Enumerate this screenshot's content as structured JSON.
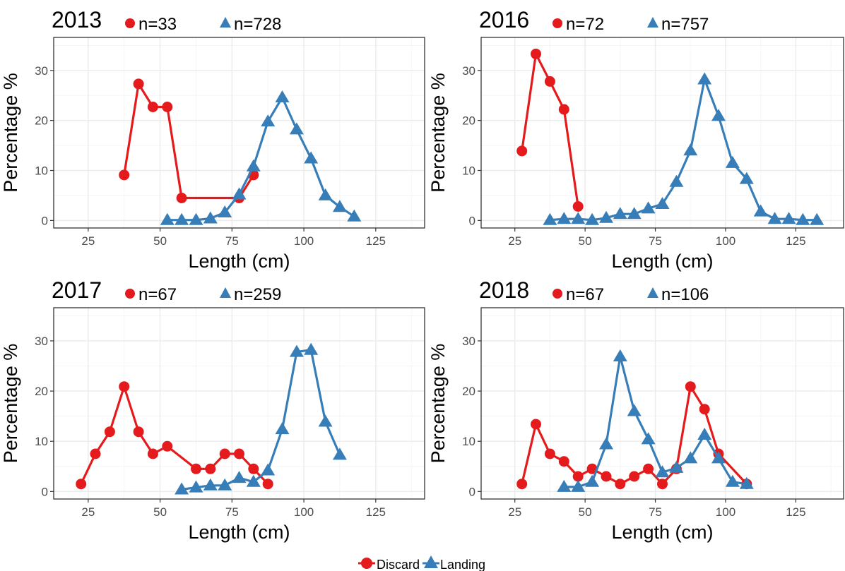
{
  "colors": {
    "discard": "#e41a1c",
    "landing": "#377eb8",
    "grid_major": "#ebebeb",
    "grid_minor": "#f5f5f5",
    "border": "#333333"
  },
  "legend": {
    "placement": "bottom",
    "items": [
      {
        "label": "Discard",
        "marker": "circle"
      },
      {
        "label": "Landing",
        "marker": "triangle"
      }
    ]
  },
  "chart_data": [
    {
      "type": "line",
      "title": "2013",
      "annotations": [
        "n=33",
        "n=728"
      ],
      "xlabel": "Length (cm)",
      "ylabel": "Percentage %",
      "xlim": [
        13,
        142
      ],
      "ylim": [
        -1.5,
        36.6
      ],
      "xticks": [
        25,
        50,
        75,
        100,
        125
      ],
      "yticks": [
        0,
        10,
        20,
        30
      ],
      "series": [
        {
          "name": "Discard",
          "x": [
            37.5,
            42.5,
            47.5,
            52.5,
            57.5,
            77.5,
            82.5
          ],
          "y": [
            9.1,
            27.3,
            22.7,
            22.7,
            4.5,
            4.5,
            9.1
          ]
        },
        {
          "name": "Landing",
          "x": [
            52.5,
            57.5,
            62.5,
            67.5,
            72.5,
            77.5,
            82.5,
            87.5,
            92.5,
            97.5,
            102.5,
            107.5,
            112.5,
            117.5
          ],
          "y": [
            0.1,
            0.1,
            0.1,
            0.4,
            1.6,
            5.2,
            10.8,
            19.8,
            24.6,
            18.2,
            12.4,
            5.0,
            2.7,
            0.8
          ]
        }
      ]
    },
    {
      "type": "line",
      "title": "2016",
      "annotations": [
        "n=72",
        "n=757"
      ],
      "xlabel": "Length (cm)",
      "ylabel": "Percentage %",
      "xlim": [
        13,
        142
      ],
      "ylim": [
        -1.5,
        36.6
      ],
      "xticks": [
        25,
        50,
        75,
        100,
        125
      ],
      "yticks": [
        0,
        10,
        20,
        30
      ],
      "series": [
        {
          "name": "Discard",
          "x": [
            27.5,
            32.5,
            37.5,
            42.5,
            47.5
          ],
          "y": [
            13.9,
            33.3,
            27.8,
            22.2,
            2.8
          ]
        },
        {
          "name": "Landing",
          "x": [
            37.5,
            42.5,
            47.5,
            52.5,
            57.5,
            62.5,
            67.5,
            72.5,
            77.5,
            82.5,
            87.5,
            92.5,
            97.5,
            102.5,
            107.5,
            112.5,
            117.5,
            122.5,
            127.5,
            132.5
          ],
          "y": [
            0.1,
            0.3,
            0.3,
            0.1,
            0.5,
            1.3,
            1.3,
            2.4,
            3.3,
            7.7,
            14.0,
            28.2,
            20.9,
            11.5,
            8.3,
            1.8,
            0.3,
            0.3,
            0.1,
            0.1
          ]
        }
      ]
    },
    {
      "type": "line",
      "title": "2017",
      "annotations": [
        "n=67",
        "n=259"
      ],
      "xlabel": "Length (cm)",
      "ylabel": "Percentage %",
      "xlim": [
        13,
        142
      ],
      "ylim": [
        -1.5,
        36.6
      ],
      "xticks": [
        25,
        50,
        75,
        100,
        125
      ],
      "yticks": [
        0,
        10,
        20,
        30
      ],
      "series": [
        {
          "name": "Discard",
          "x": [
            22.5,
            27.5,
            32.5,
            37.5,
            42.5,
            47.5,
            52.5,
            62.5,
            67.5,
            72.5,
            77.5,
            82.5,
            87.5
          ],
          "y": [
            1.5,
            7.5,
            11.9,
            20.9,
            11.9,
            7.5,
            9.0,
            4.5,
            4.5,
            7.5,
            7.5,
            4.5,
            1.5
          ]
        },
        {
          "name": "Landing",
          "x": [
            57.5,
            62.5,
            67.5,
            72.5,
            77.5,
            82.5,
            87.5,
            92.5,
            97.5,
            102.5,
            107.5,
            112.5
          ],
          "y": [
            0.4,
            0.8,
            1.2,
            1.2,
            2.7,
            1.9,
            4.2,
            12.4,
            27.8,
            28.2,
            13.9,
            7.3
          ]
        }
      ]
    },
    {
      "type": "line",
      "title": "2018",
      "annotations": [
        "n=67",
        "n=106"
      ],
      "xlabel": "Length (cm)",
      "ylabel": "Percentage %",
      "xlim": [
        13,
        142
      ],
      "ylim": [
        -1.5,
        36.6
      ],
      "xticks": [
        25,
        50,
        75,
        100,
        125
      ],
      "yticks": [
        0,
        10,
        20,
        30
      ],
      "series": [
        {
          "name": "Discard",
          "x": [
            27.5,
            32.5,
            37.5,
            42.5,
            47.5,
            52.5,
            57.5,
            62.5,
            67.5,
            72.5,
            77.5,
            82.5,
            87.5,
            92.5,
            97.5,
            107.5
          ],
          "y": [
            1.5,
            13.4,
            7.5,
            6.0,
            3.0,
            4.5,
            3.0,
            1.5,
            3.0,
            4.5,
            1.5,
            4.5,
            20.9,
            16.4,
            7.5,
            1.5
          ]
        },
        {
          "name": "Landing",
          "x": [
            42.5,
            47.5,
            52.5,
            57.5,
            62.5,
            67.5,
            72.5,
            77.5,
            82.5,
            87.5,
            92.5,
            97.5,
            102.5,
            107.5
          ],
          "y": [
            0.9,
            0.9,
            1.9,
            9.4,
            26.9,
            16.0,
            10.4,
            3.8,
            4.7,
            6.6,
            11.3,
            6.6,
            1.9,
            1.5
          ]
        }
      ]
    }
  ]
}
